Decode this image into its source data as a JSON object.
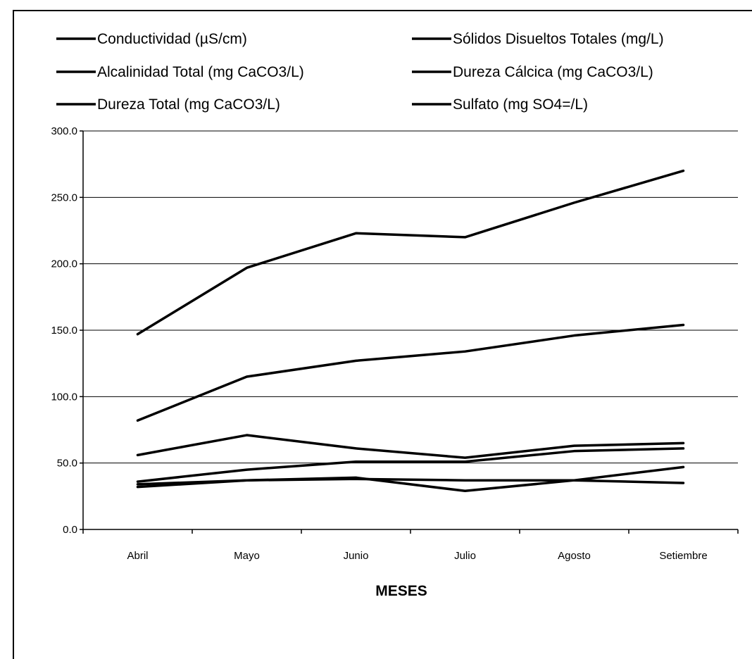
{
  "chart_data": {
    "type": "line",
    "title": "",
    "xlabel": "MESES",
    "ylabel": "",
    "categories": [
      "Abril",
      "Mayo",
      "Junio",
      "Julio",
      "Agosto",
      "Setiembre"
    ],
    "ylim": [
      0,
      300
    ],
    "yticks": [
      "0.0",
      "50.0",
      "100.0",
      "150.0",
      "200.0",
      "250.0",
      "300.0"
    ],
    "grid": true,
    "legend_position": "top",
    "line_color": "#000000",
    "series": [
      {
        "name": "Conductividad (µS/cm)",
        "values": [
          147,
          197,
          223,
          220,
          246,
          270
        ]
      },
      {
        "name": "Sólidos Disueltos Totales (mg/L)",
        "values": [
          82,
          115,
          127,
          134,
          146,
          154
        ]
      },
      {
        "name": "Alcalinidad Total (mg CaCO3/L)",
        "values": [
          56,
          71,
          61,
          54,
          63,
          65
        ]
      },
      {
        "name": "Dureza Cálcica (mg CaCO3/L)",
        "values": [
          36,
          45,
          51,
          51,
          59,
          61
        ]
      },
      {
        "name": "Dureza Total (mg CaCO3/L)",
        "values": [
          34,
          37,
          39,
          29,
          37,
          47
        ]
      },
      {
        "name": "Sulfato (mg SO4=/L)",
        "values": [
          32,
          37,
          38,
          37,
          37,
          35
        ]
      }
    ]
  }
}
